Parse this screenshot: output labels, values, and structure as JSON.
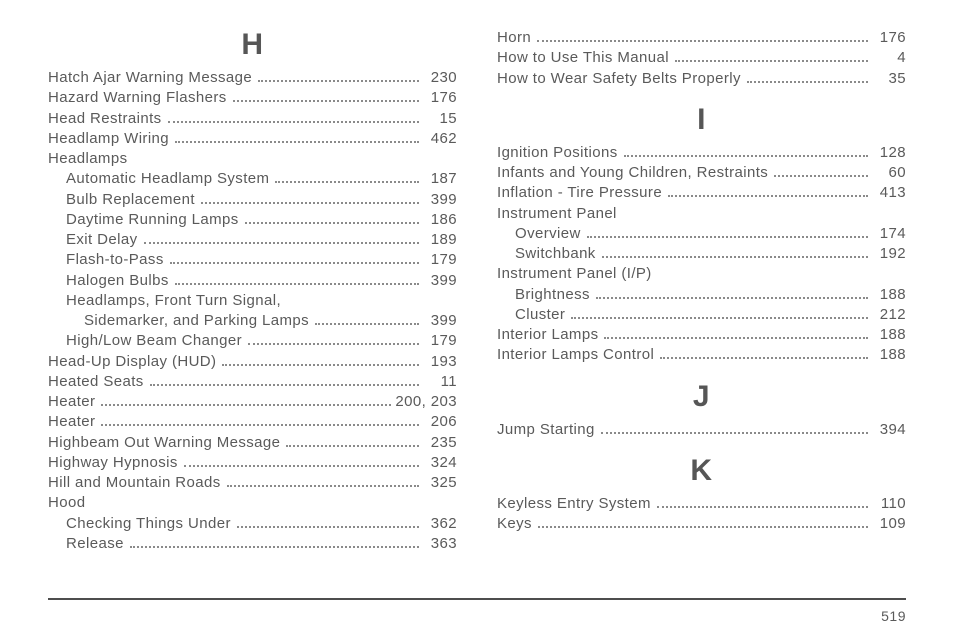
{
  "footer_page": "519",
  "left": {
    "sections": [
      {
        "heading": "H",
        "entries": [
          {
            "label": "Hatch Ajar Warning Message",
            "page": "230",
            "indent": 0
          },
          {
            "label": "Hazard Warning Flashers",
            "page": "176",
            "indent": 0
          },
          {
            "label": "Head Restraints",
            "page": "15",
            "indent": 0
          },
          {
            "label": "Headlamp Wiring",
            "page": "462",
            "indent": 0
          },
          {
            "label": "Headlamps",
            "indent": 0,
            "nolead": true
          },
          {
            "label": "Automatic Headlamp System",
            "page": "187",
            "indent": 1
          },
          {
            "label": "Bulb Replacement",
            "page": "399",
            "indent": 1
          },
          {
            "label": "Daytime Running Lamps",
            "page": "186",
            "indent": 1
          },
          {
            "label": "Exit Delay",
            "page": "189",
            "indent": 1
          },
          {
            "label": "Flash-to-Pass",
            "page": "179",
            "indent": 1
          },
          {
            "label": "Halogen Bulbs",
            "page": "399",
            "indent": 1
          },
          {
            "label": "Headlamps, Front Turn Signal,",
            "indent": 1,
            "nolead": true
          },
          {
            "label": "Sidemarker, and Parking Lamps",
            "page": "399",
            "indent": 2
          },
          {
            "label": "High/Low Beam Changer",
            "page": "179",
            "indent": 1
          },
          {
            "label": "Head-Up Display (HUD)",
            "page": "193",
            "indent": 0
          },
          {
            "label": "Heated Seats",
            "page": "11",
            "indent": 0
          },
          {
            "label": "Heater",
            "page": "200,   203",
            "indent": 0
          },
          {
            "label": "Heater",
            "page": "206",
            "indent": 0
          },
          {
            "label": "Highbeam Out Warning Message",
            "page": "235",
            "indent": 0
          },
          {
            "label": "Highway Hypnosis",
            "page": "324",
            "indent": 0
          },
          {
            "label": "Hill and Mountain Roads",
            "page": "325",
            "indent": 0
          },
          {
            "label": "Hood",
            "indent": 0,
            "nolead": true
          },
          {
            "label": "Checking Things Under",
            "page": "362",
            "indent": 1
          },
          {
            "label": "Release",
            "page": "363",
            "indent": 1
          }
        ]
      }
    ]
  },
  "right": {
    "pre_entries": [
      {
        "label": "Horn",
        "page": "176",
        "indent": 0
      },
      {
        "label": "How to Use This Manual",
        "page": "4",
        "indent": 0
      },
      {
        "label": "How to Wear Safety Belts Properly",
        "page": "35",
        "indent": 0
      }
    ],
    "sections": [
      {
        "heading": "I",
        "entries": [
          {
            "label": "Ignition Positions",
            "page": "128",
            "indent": 0
          },
          {
            "label": "Infants and Young Children, Restraints",
            "page": "60",
            "indent": 0
          },
          {
            "label": "Inflation - Tire Pressure",
            "page": "413",
            "indent": 0
          },
          {
            "label": "Instrument Panel",
            "indent": 0,
            "nolead": true
          },
          {
            "label": "Overview",
            "page": "174",
            "indent": 1
          },
          {
            "label": "Switchbank",
            "page": "192",
            "indent": 1
          },
          {
            "label": "Instrument Panel (I/P)",
            "indent": 0,
            "nolead": true
          },
          {
            "label": "Brightness",
            "page": "188",
            "indent": 1
          },
          {
            "label": "Cluster",
            "page": "212",
            "indent": 1
          },
          {
            "label": "Interior Lamps",
            "page": "188",
            "indent": 0
          },
          {
            "label": "Interior Lamps Control",
            "page": "188",
            "indent": 0
          }
        ]
      },
      {
        "heading": "J",
        "entries": [
          {
            "label": "Jump Starting",
            "page": "394",
            "indent": 0
          }
        ]
      },
      {
        "heading": "K",
        "entries": [
          {
            "label": "Keyless Entry System",
            "page": "110",
            "indent": 0
          },
          {
            "label": "Keys",
            "page": "109",
            "indent": 0
          }
        ]
      }
    ]
  }
}
